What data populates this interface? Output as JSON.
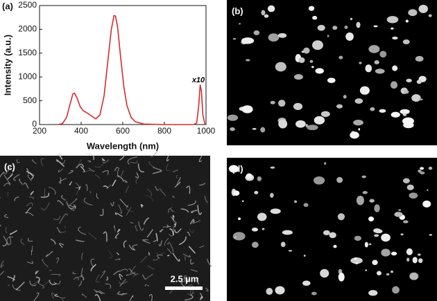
{
  "chart_data": {
    "type": "line",
    "panel_label": "(a)",
    "x_label": "Wavelength (nm)",
    "y_label": "Intensity (a.u.)",
    "annotation": "x10",
    "x": [
      290,
      310,
      330,
      345,
      360,
      368,
      380,
      395,
      410,
      430,
      450,
      470,
      490,
      510,
      530,
      545,
      558,
      565,
      575,
      590,
      605,
      620,
      640,
      660,
      700,
      800,
      940,
      955,
      965,
      972,
      978,
      985,
      995
    ],
    "series": [
      {
        "color": "#d42a2a",
        "values": [
          0,
          20,
          150,
          400,
          640,
          660,
          560,
          380,
          290,
          240,
          180,
          120,
          200,
          600,
          1400,
          2000,
          2290,
          2280,
          2050,
          1400,
          800,
          400,
          150,
          60,
          10,
          0,
          0,
          30,
          400,
          830,
          700,
          200,
          0
        ]
      }
    ],
    "xlim": [
      200,
      1000
    ],
    "xticks": [
      200,
      400,
      600,
      800,
      1000
    ],
    "ylim": [
      0,
      2500
    ],
    "yticks": [
      0,
      500,
      1000,
      1500,
      2000,
      2500
    ]
  },
  "panels": [
    {
      "label": "(b)"
    },
    {
      "label": "(c)",
      "scale_bar": "2.5 µm"
    },
    {
      "label": "(d)"
    }
  ]
}
